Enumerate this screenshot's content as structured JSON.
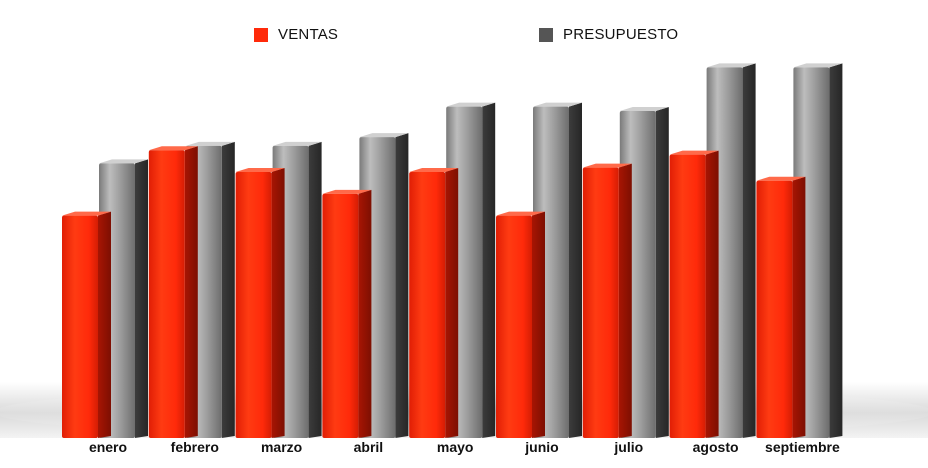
{
  "chart_data": {
    "type": "bar",
    "style": "3d-column",
    "categories": [
      "enero",
      "febrero",
      "marzo",
      "abril",
      "mayo",
      "junio",
      "julio",
      "agosto",
      "septiembre"
    ],
    "series": [
      {
        "name": "VENTAS",
        "color": "#ff2a0a",
        "values": [
          51,
          66,
          61,
          56,
          61,
          51,
          62,
          65,
          59
        ]
      },
      {
        "name": "PRESUPUESTO",
        "color": "#8c8c8c",
        "values": [
          63,
          67,
          67,
          69,
          76,
          76,
          75,
          85,
          85
        ]
      }
    ],
    "ylim": [
      0,
      100
    ],
    "grid": false,
    "legend_position": "top",
    "title": "",
    "xlabel": "",
    "ylabel": ""
  }
}
